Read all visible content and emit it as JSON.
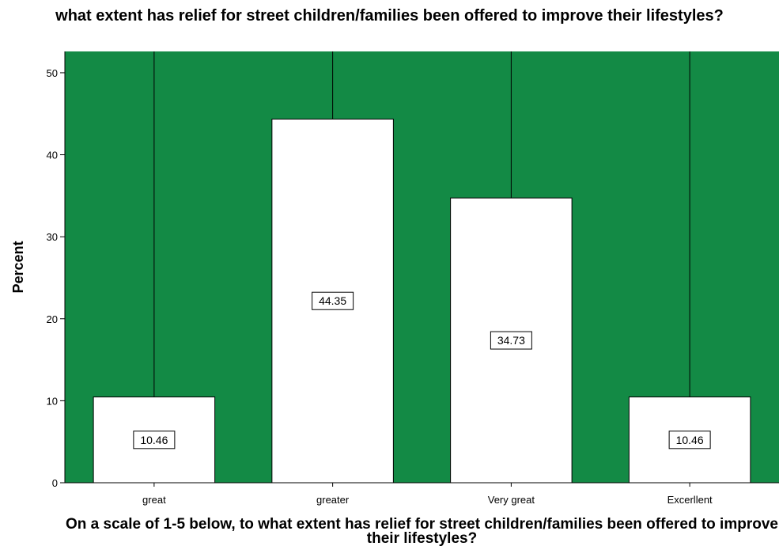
{
  "chart_data": {
    "type": "bar",
    "title": "what extent has relief for street children/families been offered to improve their lifestyles?",
    "xlabel": "On a scale of 1-5 below, to what extent has relief for street children/families been offered to improve their lifestyles?",
    "ylabel": "Percent",
    "categories": [
      "great",
      "greater",
      "Very great",
      "Excerllent"
    ],
    "values": [
      10.46,
      44.35,
      34.73,
      10.46
    ],
    "data_labels": [
      "10.46",
      "44.35",
      "34.73",
      "10.46"
    ],
    "ylim": [
      0,
      52.6
    ],
    "yticks": [
      0,
      10,
      20,
      30,
      40,
      50
    ],
    "ytick_labels": [
      "0",
      "10",
      "20",
      "30",
      "40",
      "50"
    ],
    "grid": false,
    "background_color": "#138A45",
    "bar_color": "#FFFFFF"
  }
}
